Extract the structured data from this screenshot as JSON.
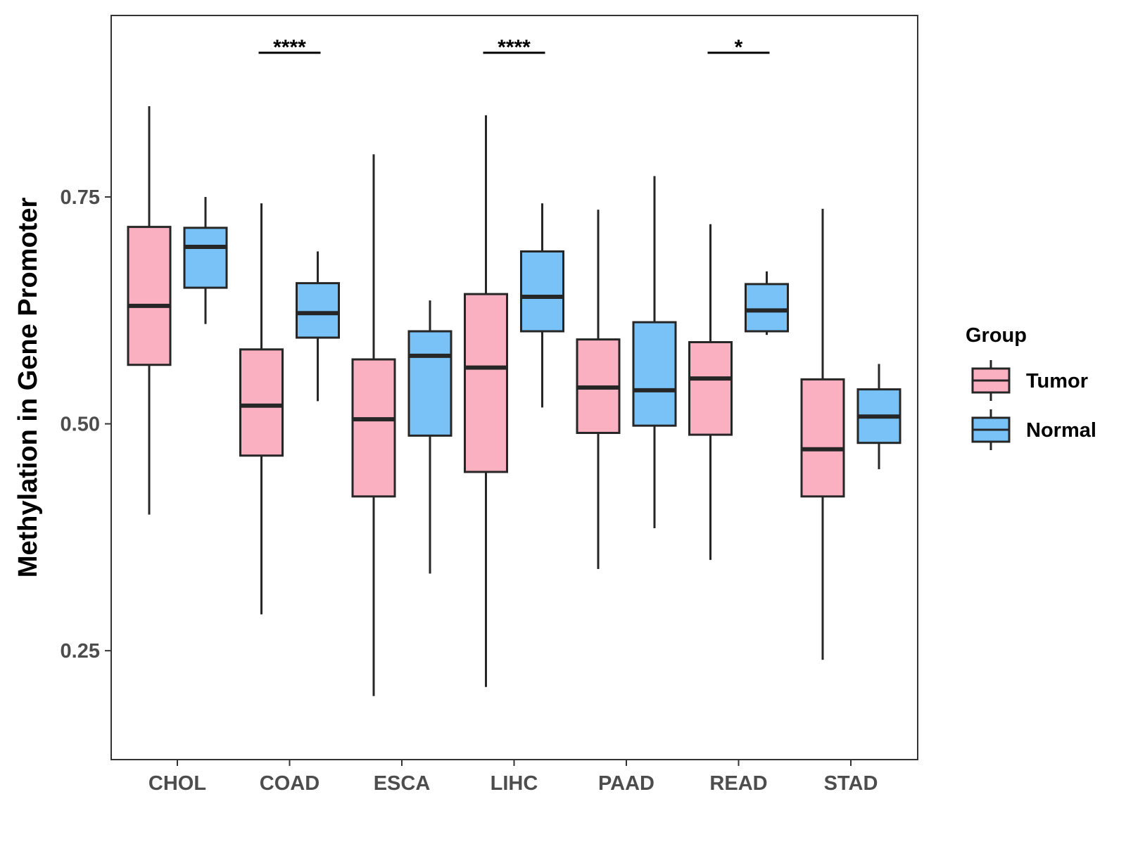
{
  "chart_data": {
    "type": "boxplot",
    "title": "",
    "xlabel": "",
    "ylabel": "Methylation in Gene Promoter",
    "ylim": [
      0.13,
      0.95
    ],
    "yticks": [
      {
        "value": 0.25,
        "label": "0.25"
      },
      {
        "value": 0.5,
        "label": "0.50"
      },
      {
        "value": 0.75,
        "label": "0.75"
      }
    ],
    "categories": [
      "CHOL",
      "COAD",
      "ESCA",
      "LIHC",
      "PAAD",
      "READ",
      "STAD"
    ],
    "legend": {
      "title": "Group",
      "position": "right",
      "items": [
        {
          "name": "Tumor",
          "color": "#fbb0c1"
        },
        {
          "name": "Normal",
          "color": "#78c2f8"
        }
      ]
    },
    "series": [
      {
        "name": "Tumor",
        "color": "#fbb0c1",
        "boxes": [
          {
            "min": 0.4,
            "q1": 0.565,
            "median": 0.63,
            "q3": 0.717,
            "max": 0.85
          },
          {
            "min": 0.29,
            "q1": 0.465,
            "median": 0.52,
            "q3": 0.582,
            "max": 0.743
          },
          {
            "min": 0.2,
            "q1": 0.42,
            "median": 0.505,
            "q3": 0.571,
            "max": 0.797
          },
          {
            "min": 0.21,
            "q1": 0.447,
            "median": 0.562,
            "q3": 0.643,
            "max": 0.84
          },
          {
            "min": 0.34,
            "q1": 0.49,
            "median": 0.54,
            "q3": 0.593,
            "max": 0.736
          },
          {
            "min": 0.35,
            "q1": 0.488,
            "median": 0.55,
            "q3": 0.59,
            "max": 0.72
          },
          {
            "min": 0.24,
            "q1": 0.42,
            "median": 0.472,
            "q3": 0.549,
            "max": 0.737
          }
        ]
      },
      {
        "name": "Normal",
        "color": "#78c2f8",
        "boxes": [
          {
            "min": 0.61,
            "q1": 0.65,
            "median": 0.695,
            "q3": 0.716,
            "max": 0.75
          },
          {
            "min": 0.525,
            "q1": 0.595,
            "median": 0.622,
            "q3": 0.655,
            "max": 0.69
          },
          {
            "min": 0.335,
            "q1": 0.487,
            "median": 0.575,
            "q3": 0.602,
            "max": 0.636
          },
          {
            "min": 0.518,
            "q1": 0.602,
            "median": 0.64,
            "q3": 0.69,
            "max": 0.743
          },
          {
            "min": 0.385,
            "q1": 0.498,
            "median": 0.537,
            "q3": 0.612,
            "max": 0.773
          },
          {
            "min": 0.598,
            "q1": 0.602,
            "median": 0.625,
            "q3": 0.654,
            "max": 0.668
          },
          {
            "min": 0.45,
            "q1": 0.479,
            "median": 0.508,
            "q3": 0.538,
            "max": 0.566
          }
        ]
      }
    ],
    "significance": [
      {
        "category": "COAD",
        "label": "****"
      },
      {
        "category": "LIHC",
        "label": "****"
      },
      {
        "category": "READ",
        "label": "*"
      }
    ]
  }
}
